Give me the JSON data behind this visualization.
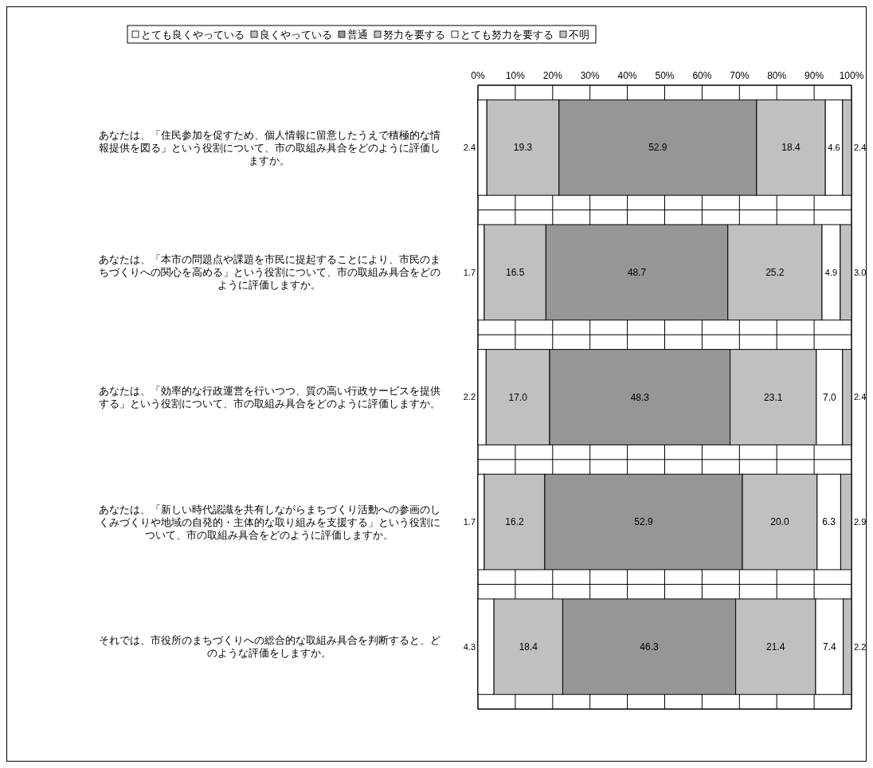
{
  "chart_data": {
    "type": "bar",
    "orientation": "horizontal",
    "stacked": true,
    "grid": "x",
    "legend": "top",
    "categories": [
      "あなたは、「住民参加を促すため、個人情報に留意したうえで積極的な情報提供を図る」という役割について、市の取組み具合をどのように評価しますか。",
      "あなたは、「本市の問題点や課題を市民に提起することにより、市民のまちづくりへの関心を高める」という役割について、市の取組み具合をどのように評価しますか。",
      "あなたは、「効率的な行政運営を行いつつ、質の高い行政サービスを提供する」という役割について、市の取組み具合をどのように評価しますか。",
      "あなたは、「新しい時代認識を共有しながらまちづくり活動への参画のしくみづくりや地域の自発的・主体的な取り組みを支援する」という役割について、市の取組み具合をどのように評価しますか。",
      "それでは、市役所のまちづくりへの総合的な取組み具合を判断すると、どのような評価をしますか。"
    ],
    "xlim": [
      0,
      100
    ],
    "xticks": [
      {
        "value": 0,
        "label": "0%"
      },
      {
        "value": 10,
        "label": "10%"
      },
      {
        "value": 20,
        "label": "20%"
      },
      {
        "value": 30,
        "label": "30%"
      },
      {
        "value": 40,
        "label": "40%"
      },
      {
        "value": 50,
        "label": "50%"
      },
      {
        "value": 60,
        "label": "60%"
      },
      {
        "value": 70,
        "label": "70%"
      },
      {
        "value": 80,
        "label": "80%"
      },
      {
        "value": 90,
        "label": "90%"
      },
      {
        "value": 100,
        "label": "100%"
      }
    ],
    "series": [
      {
        "name": "とても良くやっている",
        "color": "#ffffff",
        "values": [
          2.4,
          1.7,
          2.2,
          1.7,
          4.3
        ],
        "value_labels": [
          "2.4",
          "1.7",
          "2.2",
          "1.7",
          "4.3"
        ]
      },
      {
        "name": "良くやっている",
        "color": "#c0c0c0",
        "values": [
          19.3,
          16.5,
          17.0,
          16.2,
          18.4
        ],
        "value_labels": [
          "19.3",
          "16.5",
          "17.0",
          "16.2",
          "18.4"
        ]
      },
      {
        "name": "普通",
        "color": "#969696",
        "values": [
          52.9,
          48.7,
          48.3,
          52.9,
          46.3
        ],
        "value_labels": [
          "52.9",
          "48.7",
          "48.3",
          "52.9",
          "46.3"
        ]
      },
      {
        "name": "努力を要する",
        "color": "#c0c0c0",
        "values": [
          18.4,
          25.2,
          23.1,
          20.0,
          21.4
        ],
        "value_labels": [
          "18.4",
          "25.2",
          "23.1",
          "20.0",
          "21.4"
        ]
      },
      {
        "name": "とても努力を要する",
        "color": "#ffffff",
        "values": [
          4.6,
          4.9,
          7.0,
          6.3,
          7.4
        ],
        "value_labels": [
          "4.6",
          "4.9",
          "7.0",
          "6.3",
          "7.4"
        ]
      },
      {
        "name": "不明",
        "color": "#c0c0c0",
        "values": [
          2.4,
          3.0,
          2.4,
          2.9,
          2.2
        ],
        "value_labels": [
          "2.4",
          "3.0",
          "2.4",
          "2.9",
          "2.2"
        ]
      }
    ]
  }
}
